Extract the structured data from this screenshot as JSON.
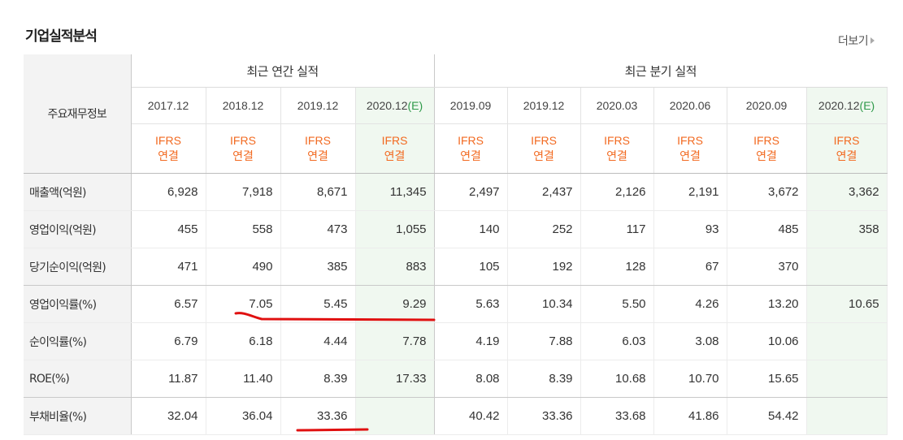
{
  "title": "기업실적분석",
  "more_label": "더보기",
  "table": {
    "first_header": "주요재무정보",
    "annual_header": "최근 연간 실적",
    "quarter_header": "최근 분기 실적",
    "annual_periods": [
      "2017.12",
      "2018.12",
      "2019.12",
      "2020.12(E)"
    ],
    "quarter_periods": [
      "2019.09",
      "2019.12",
      "2020.03",
      "2020.06",
      "2020.09",
      "2020.12(E)"
    ],
    "basis_line1": "IFRS",
    "basis_line2": "연결",
    "rows": [
      {
        "label": "매출액(억원)",
        "values": [
          "6,928",
          "7,918",
          "8,671",
          "11,345",
          "2,497",
          "2,437",
          "2,126",
          "2,191",
          "3,672",
          "3,362"
        ]
      },
      {
        "label": "영업이익(억원)",
        "values": [
          "455",
          "558",
          "473",
          "1,055",
          "140",
          "252",
          "117",
          "93",
          "485",
          "358"
        ]
      },
      {
        "label": "당기순이익(억원)",
        "values": [
          "471",
          "490",
          "385",
          "883",
          "105",
          "192",
          "128",
          "67",
          "370",
          ""
        ]
      },
      {
        "label": "영업이익률(%)",
        "values": [
          "6.57",
          "7.05",
          "5.45",
          "9.29",
          "5.63",
          "10.34",
          "5.50",
          "4.26",
          "13.20",
          "10.65"
        ]
      },
      {
        "label": "순이익률(%)",
        "values": [
          "6.79",
          "6.18",
          "4.44",
          "7.78",
          "4.19",
          "7.88",
          "6.03",
          "3.08",
          "10.06",
          ""
        ]
      },
      {
        "label": "ROE(%)",
        "values": [
          "11.87",
          "11.40",
          "8.39",
          "17.33",
          "8.08",
          "8.39",
          "10.68",
          "10.70",
          "15.65",
          ""
        ]
      },
      {
        "label": "부채비율(%)",
        "values": [
          "32.04",
          "36.04",
          "33.36",
          "",
          "40.42",
          "33.36",
          "33.68",
          "41.86",
          "54.42",
          ""
        ]
      }
    ]
  },
  "colors": {
    "ifrs": "#f26a21",
    "estimate": "#2f9a4a",
    "estimate_bg": "#f0f8f0",
    "annotation": "#e01010"
  }
}
